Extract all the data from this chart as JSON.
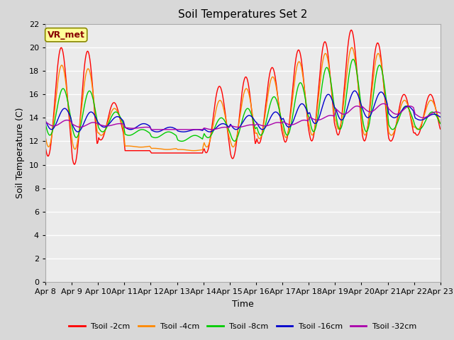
{
  "title": "Soil Temperatures Set 2",
  "xlabel": "Time",
  "ylabel": "Soil Temperature (C)",
  "annotation": "VR_met",
  "ylim": [
    0,
    22
  ],
  "yticks": [
    0,
    2,
    4,
    6,
    8,
    10,
    12,
    14,
    16,
    18,
    20,
    22
  ],
  "x_labels": [
    "Apr 8",
    "Apr 9",
    "Apr 10",
    "Apr 11",
    "Apr 12",
    "Apr 13",
    "Apr 14",
    "Apr 15",
    "Apr 16",
    "Apr 17",
    "Apr 18",
    "Apr 19",
    "Apr 20",
    "Apr 21",
    "Apr 22",
    "Apr 23"
  ],
  "colors": {
    "tsoil_2cm": "#ff0000",
    "tsoil_4cm": "#ff8800",
    "tsoil_8cm": "#00cc00",
    "tsoil_16cm": "#0000cc",
    "tsoil_32cm": "#aa00aa"
  },
  "legend_labels": [
    "Tsoil -2cm",
    "Tsoil -4cm",
    "Tsoil -8cm",
    "Tsoil -16cm",
    "Tsoil -32cm"
  ],
  "fig_bg_color": "#d8d8d8",
  "plot_bg_color": "#ebebeb",
  "annotation_bg": "#ffff99",
  "annotation_border": "#888800",
  "annotation_text_color": "#880000",
  "title_fontsize": 11,
  "axis_label_fontsize": 9,
  "tick_fontsize": 8,
  "n_days": 15,
  "n_pts_per_day": 48,
  "peak_2cm": [
    20.0,
    19.7,
    15.3,
    11.2,
    11.0,
    11.0,
    16.7,
    17.5,
    18.3,
    19.8,
    20.5,
    21.5,
    20.4,
    16.0,
    16.0
  ],
  "trough_2cm": [
    10.7,
    10.0,
    12.1,
    11.2,
    11.0,
    11.0,
    11.0,
    10.5,
    11.8,
    11.9,
    12.0,
    12.5,
    12.0,
    12.0,
    12.5
  ],
  "peak_4cm": [
    18.5,
    18.2,
    14.8,
    11.5,
    11.3,
    11.2,
    15.5,
    16.5,
    17.5,
    18.8,
    19.5,
    20.0,
    19.5,
    15.5,
    15.5
  ],
  "trough_4cm": [
    11.5,
    11.3,
    12.5,
    11.6,
    11.4,
    11.3,
    11.5,
    11.5,
    12.2,
    12.3,
    12.5,
    13.0,
    12.5,
    12.5,
    13.0
  ],
  "peak_8cm": [
    16.5,
    16.3,
    14.5,
    13.0,
    12.8,
    12.5,
    14.0,
    14.8,
    15.8,
    17.0,
    18.3,
    19.0,
    18.5,
    15.0,
    14.5
  ],
  "trough_8cm": [
    12.5,
    12.3,
    12.8,
    12.5,
    12.3,
    12.0,
    12.3,
    12.0,
    12.5,
    12.5,
    12.8,
    13.0,
    12.8,
    13.0,
    13.0
  ],
  "peak_16cm": [
    14.8,
    14.5,
    14.1,
    13.5,
    13.2,
    13.0,
    13.5,
    14.2,
    14.5,
    15.2,
    16.0,
    16.3,
    16.2,
    15.0,
    14.3
  ],
  "trough_16cm": [
    13.0,
    12.8,
    13.2,
    13.0,
    12.8,
    12.8,
    12.8,
    13.0,
    13.0,
    13.2,
    13.5,
    13.8,
    14.0,
    14.0,
    13.8
  ],
  "peak_32cm": [
    13.8,
    13.6,
    13.5,
    13.2,
    13.0,
    13.0,
    13.2,
    13.4,
    13.6,
    13.8,
    14.2,
    15.0,
    15.2,
    15.0,
    14.5
  ],
  "trough_32cm": [
    13.3,
    13.2,
    13.3,
    13.1,
    13.0,
    13.0,
    13.0,
    13.2,
    13.3,
    13.4,
    13.8,
    14.3,
    14.5,
    14.3,
    14.0
  ]
}
